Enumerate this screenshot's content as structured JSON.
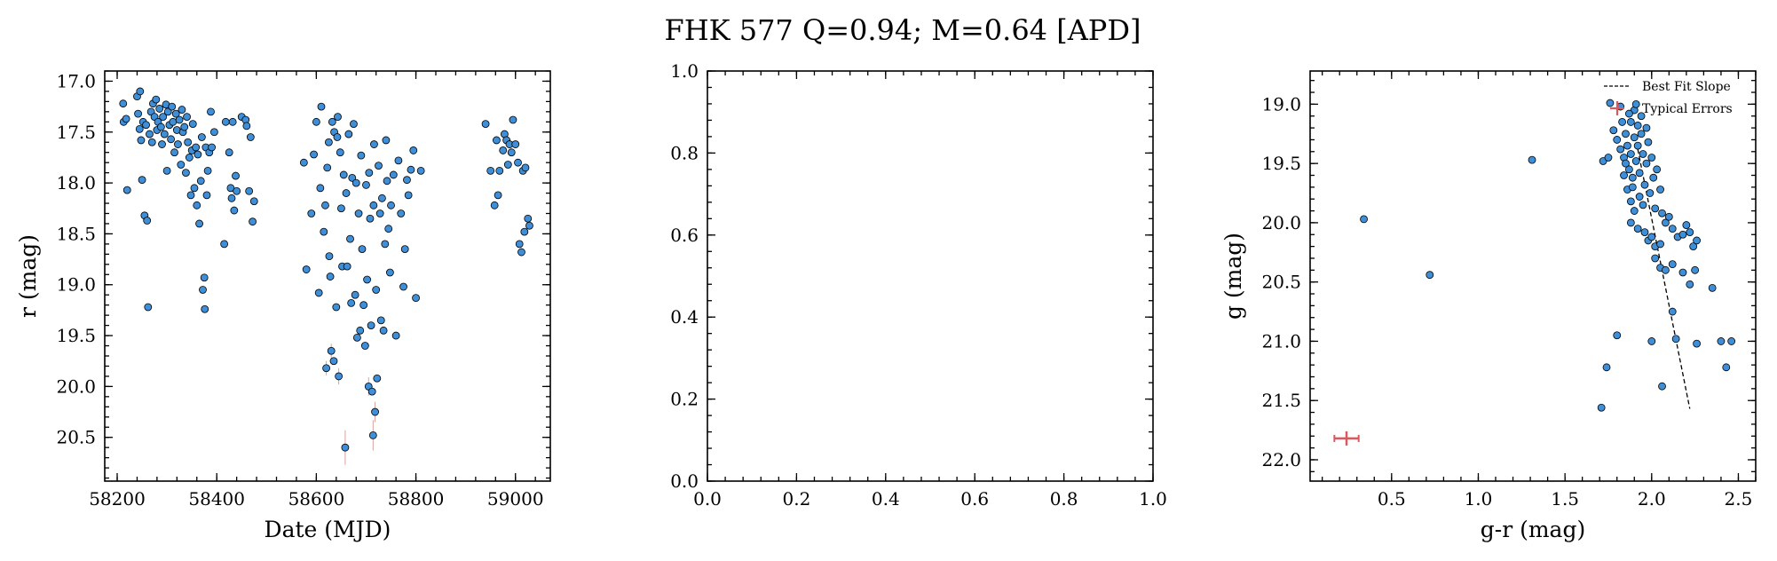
{
  "title": "FHK 577  Q=0.94; M=0.64 [APD]",
  "colors": {
    "marker_fill": "#3f8fd8",
    "marker_edge": "#000000",
    "err_bar": "#d9595f",
    "fit_line": "#000000"
  },
  "chart_data": [
    {
      "type": "scatter",
      "name": "light-curve",
      "xlabel": "Date (MJD)",
      "ylabel": "r (mag)",
      "xlim": [
        58175,
        59070
      ],
      "ylim": [
        20.93,
        16.9
      ],
      "y_inverted": true,
      "xticks": [
        58200,
        58400,
        58600,
        58800,
        59000
      ],
      "xtick_labels": [
        "58200",
        "58400",
        "58600",
        "58800",
        "59000"
      ],
      "yticks": [
        17.0,
        17.5,
        18.0,
        18.5,
        19.0,
        19.5,
        20.0,
        20.5
      ],
      "ytick_labels": [
        "17.0",
        "17.5",
        "18.0",
        "18.5",
        "19.0",
        "19.5",
        "20.0",
        "20.5"
      ],
      "points": [
        [
          58212,
          17.22
        ],
        [
          58213,
          17.4
        ],
        [
          58218,
          17.37
        ],
        [
          58220,
          18.07
        ],
        [
          58240,
          17.15
        ],
        [
          58242,
          17.32
        ],
        [
          58245,
          17.47
        ],
        [
          58246,
          17.1
        ],
        [
          58248,
          17.58
        ],
        [
          58250,
          17.97
        ],
        [
          58252,
          17.4
        ],
        [
          58255,
          18.32
        ],
        [
          58258,
          17.43
        ],
        [
          58260,
          18.37
        ],
        [
          58262,
          19.22
        ],
        [
          58265,
          17.52
        ],
        [
          58268,
          17.3
        ],
        [
          58270,
          17.6
        ],
        [
          58272,
          17.22
        ],
        [
          58275,
          17.35
        ],
        [
          58278,
          17.18
        ],
        [
          58280,
          17.48
        ],
        [
          58282,
          17.4
        ],
        [
          58285,
          17.27
        ],
        [
          58288,
          17.45
        ],
        [
          58290,
          17.62
        ],
        [
          58292,
          17.35
        ],
        [
          58295,
          17.52
        ],
        [
          58298,
          17.23
        ],
        [
          58300,
          17.88
        ],
        [
          58302,
          17.3
        ],
        [
          58305,
          17.43
        ],
        [
          58308,
          17.57
        ],
        [
          58310,
          17.25
        ],
        [
          58312,
          17.4
        ],
        [
          58315,
          17.7
        ],
        [
          58318,
          17.32
        ],
        [
          58320,
          17.48
        ],
        [
          58322,
          17.62
        ],
        [
          58325,
          17.38
        ],
        [
          58328,
          17.82
        ],
        [
          58330,
          17.28
        ],
        [
          58332,
          17.5
        ],
        [
          58335,
          17.45
        ],
        [
          58338,
          17.9
        ],
        [
          58340,
          17.35
        ],
        [
          58342,
          17.6
        ],
        [
          58345,
          17.75
        ],
        [
          58348,
          18.12
        ],
        [
          58350,
          17.68
        ],
        [
          58352,
          17.42
        ],
        [
          58355,
          18.05
        ],
        [
          58358,
          17.65
        ],
        [
          58360,
          18.22
        ],
        [
          58362,
          17.72
        ],
        [
          58365,
          18.4
        ],
        [
          58368,
          17.98
        ],
        [
          58370,
          17.55
        ],
        [
          58372,
          19.05
        ],
        [
          58375,
          18.93
        ],
        [
          58376,
          19.24
        ],
        [
          58378,
          17.65
        ],
        [
          58380,
          18.12
        ],
        [
          58382,
          17.88
        ],
        [
          58385,
          17.7
        ],
        [
          58388,
          17.3
        ],
        [
          58390,
          17.65
        ],
        [
          58395,
          17.5
        ],
        [
          58415,
          18.6
        ],
        [
          58418,
          17.4
        ],
        [
          58425,
          17.7
        ],
        [
          58428,
          18.05
        ],
        [
          58430,
          18.15
        ],
        [
          58432,
          17.4
        ],
        [
          58435,
          18.27
        ],
        [
          58438,
          17.93
        ],
        [
          58440,
          18.08
        ],
        [
          58450,
          17.35
        ],
        [
          58458,
          17.38
        ],
        [
          58460,
          17.44
        ],
        [
          58465,
          18.08
        ],
        [
          58468,
          17.55
        ],
        [
          58472,
          18.38
        ],
        [
          58475,
          18.18
        ],
        [
          58575,
          17.8
        ],
        [
          58580,
          18.85
        ],
        [
          58590,
          18.3
        ],
        [
          58595,
          17.72
        ],
        [
          58600,
          17.4
        ],
        [
          58605,
          19.08
        ],
        [
          58608,
          18.05
        ],
        [
          58610,
          17.25
        ],
        [
          58615,
          18.48
        ],
        [
          58618,
          18.22
        ],
        [
          58620,
          19.82
        ],
        [
          58622,
          17.85
        ],
        [
          58625,
          17.6
        ],
        [
          58626,
          18.72
        ],
        [
          58628,
          18.92
        ],
        [
          58630,
          19.65
        ],
        [
          58632,
          17.4
        ],
        [
          58635,
          19.75
        ],
        [
          58636,
          17.5
        ],
        [
          58640,
          19.22
        ],
        [
          58642,
          17.55
        ],
        [
          58643,
          17.35
        ],
        [
          58645,
          19.9
        ],
        [
          58648,
          17.7
        ],
        [
          58650,
          18.25
        ],
        [
          58652,
          18.82
        ],
        [
          58655,
          17.92
        ],
        [
          58658,
          20.6
        ],
        [
          58660,
          18.1
        ],
        [
          58662,
          18.82
        ],
        [
          58665,
          17.52
        ],
        [
          58668,
          18.55
        ],
        [
          58670,
          19.18
        ],
        [
          58672,
          17.95
        ],
        [
          58675,
          17.42
        ],
        [
          58678,
          19.1
        ],
        [
          58680,
          18.0
        ],
        [
          58682,
          19.52
        ],
        [
          58685,
          18.3
        ],
        [
          58688,
          19.45
        ],
        [
          58690,
          17.73
        ],
        [
          58692,
          18.65
        ],
        [
          58695,
          19.2
        ],
        [
          58698,
          19.6
        ],
        [
          58700,
          18.02
        ],
        [
          58702,
          18.95
        ],
        [
          58705,
          20.0
        ],
        [
          58706,
          17.9
        ],
        [
          58708,
          18.35
        ],
        [
          58710,
          19.4
        ],
        [
          58712,
          20.05
        ],
        [
          58714,
          20.48
        ],
        [
          58715,
          18.22
        ],
        [
          58716,
          17.62
        ],
        [
          58718,
          20.25
        ],
        [
          58720,
          19.05
        ],
        [
          58722,
          19.92
        ],
        [
          58725,
          17.83
        ],
        [
          58728,
          18.3
        ],
        [
          58730,
          19.35
        ],
        [
          58732,
          18.15
        ],
        [
          58735,
          19.45
        ],
        [
          58738,
          18.6
        ],
        [
          58740,
          17.58
        ],
        [
          58742,
          17.98
        ],
        [
          58745,
          18.45
        ],
        [
          58748,
          18.88
        ],
        [
          58750,
          18.22
        ],
        [
          58755,
          17.92
        ],
        [
          58760,
          19.5
        ],
        [
          58765,
          17.78
        ],
        [
          58770,
          18.3
        ],
        [
          58775,
          19.02
        ],
        [
          58778,
          18.65
        ],
        [
          58782,
          17.97
        ],
        [
          58785,
          18.12
        ],
        [
          58790,
          17.87
        ],
        [
          58795,
          17.68
        ],
        [
          58800,
          19.13
        ],
        [
          58810,
          17.88
        ],
        [
          58940,
          17.42
        ],
        [
          58950,
          17.88
        ],
        [
          58958,
          18.22
        ],
        [
          58962,
          17.58
        ],
        [
          58965,
          18.12
        ],
        [
          58968,
          17.88
        ],
        [
          58975,
          17.68
        ],
        [
          58978,
          17.52
        ],
        [
          58982,
          17.58
        ],
        [
          58985,
          17.82
        ],
        [
          58988,
          17.62
        ],
        [
          58992,
          17.7
        ],
        [
          58995,
          17.38
        ],
        [
          59000,
          17.62
        ],
        [
          59005,
          17.8
        ],
        [
          59008,
          18.6
        ],
        [
          59012,
          18.68
        ],
        [
          59015,
          17.88
        ],
        [
          59018,
          18.48
        ],
        [
          59020,
          17.85
        ],
        [
          59025,
          18.35
        ],
        [
          59028,
          18.42
        ]
      ],
      "error_bars": [
        [
          58658,
          20.6,
          0.17
        ],
        [
          58714,
          20.48,
          0.15
        ],
        [
          58705,
          20.0,
          0.09
        ],
        [
          58718,
          20.25,
          0.1
        ],
        [
          58645,
          19.9,
          0.08
        ],
        [
          58620,
          19.82,
          0.07
        ],
        [
          58630,
          19.65,
          0.07
        ]
      ]
    },
    {
      "type": "scatter",
      "name": "empty-panel",
      "xlim": [
        0,
        1
      ],
      "ylim": [
        0,
        1
      ],
      "y_inverted": false,
      "xticks": [
        0,
        0.2,
        0.4,
        0.6,
        0.8,
        1.0
      ],
      "xtick_labels": [
        "0.0",
        "0.2",
        "0.4",
        "0.6",
        "0.8",
        "1.0"
      ],
      "yticks": [
        0,
        0.2,
        0.4,
        0.6,
        0.8,
        1.0
      ],
      "ytick_labels": [
        "0.0",
        "0.2",
        "0.4",
        "0.6",
        "0.8",
        "1.0"
      ],
      "points": []
    },
    {
      "type": "scatter",
      "name": "color-magnitude",
      "xlabel": "g-r (mag)",
      "ylabel": "g (mag)",
      "xlim": [
        0.03,
        2.6
      ],
      "ylim": [
        22.18,
        18.72
      ],
      "y_inverted": true,
      "xticks": [
        0.5,
        1.0,
        1.5,
        2.0,
        2.5
      ],
      "xtick_labels": [
        "0.5",
        "1.0",
        "1.5",
        "2.0",
        "2.5"
      ],
      "yticks": [
        19.0,
        19.5,
        20.0,
        20.5,
        21.0,
        21.5,
        22.0
      ],
      "ytick_labels": [
        "19.0",
        "19.5",
        "20.0",
        "20.5",
        "21.0",
        "21.5",
        "22.0"
      ],
      "legend": {
        "location": "top-right",
        "entries": [
          "Best Fit Slope",
          "Typical Errors"
        ]
      },
      "fit_line": [
        [
          1.92,
          19.38
        ],
        [
          2.22,
          21.57
        ]
      ],
      "typical_error": {
        "x": 0.24,
        "y": 21.82,
        "xerr": 0.07,
        "yerr": 0.06
      },
      "points": [
        [
          0.34,
          19.97
        ],
        [
          0.72,
          20.44
        ],
        [
          1.31,
          19.47
        ],
        [
          1.71,
          21.56
        ],
        [
          1.74,
          21.22
        ],
        [
          1.72,
          19.48
        ],
        [
          1.8,
          20.95
        ],
        [
          1.76,
          18.99
        ],
        [
          1.82,
          19.02
        ],
        [
          1.78,
          19.22
        ],
        [
          1.8,
          19.3
        ],
        [
          1.82,
          19.38
        ],
        [
          1.84,
          19.45
        ],
        [
          1.85,
          19.25
        ],
        [
          1.86,
          19.35
        ],
        [
          1.87,
          19.55
        ],
        [
          1.88,
          19.15
        ],
        [
          1.88,
          19.42
        ],
        [
          1.89,
          19.62
        ],
        [
          1.9,
          19.05
        ],
        [
          1.9,
          19.28
        ],
        [
          1.91,
          19.48
        ],
        [
          1.92,
          19.18
        ],
        [
          1.92,
          19.35
        ],
        [
          1.93,
          19.58
        ],
        [
          1.94,
          19.1
        ],
        [
          1.94,
          19.25
        ],
        [
          1.95,
          19.42
        ],
        [
          1.96,
          19.68
        ],
        [
          1.97,
          19.2
        ],
        [
          1.97,
          19.5
        ],
        [
          1.98,
          19.32
        ],
        [
          1.99,
          19.75
        ],
        [
          2.0,
          19.45
        ],
        [
          2.01,
          19.62
        ],
        [
          2.02,
          19.88
        ],
        [
          2.03,
          19.55
        ],
        [
          2.05,
          19.72
        ],
        [
          2.06,
          19.92
        ],
        [
          1.84,
          19.6
        ],
        [
          1.86,
          19.72
        ],
        [
          1.88,
          19.82
        ],
        [
          1.9,
          19.9
        ],
        [
          1.83,
          19.15
        ],
        [
          1.87,
          19.08
        ],
        [
          1.91,
          19.0
        ],
        [
          1.89,
          19.7
        ],
        [
          1.93,
          19.78
        ],
        [
          1.95,
          19.85
        ],
        [
          1.85,
          19.5
        ],
        [
          1.88,
          20.0
        ],
        [
          1.92,
          20.05
        ],
        [
          1.96,
          20.08
        ],
        [
          1.98,
          20.15
        ],
        [
          2.0,
          20.12
        ],
        [
          2.02,
          20.2
        ],
        [
          2.05,
          20.18
        ],
        [
          2.08,
          20.0
        ],
        [
          2.1,
          19.95
        ],
        [
          2.12,
          20.05
        ],
        [
          2.15,
          20.12
        ],
        [
          2.18,
          20.1
        ],
        [
          2.2,
          20.02
        ],
        [
          2.22,
          20.08
        ],
        [
          2.24,
          20.2
        ],
        [
          2.26,
          20.15
        ],
        [
          2.02,
          20.3
        ],
        [
          2.05,
          20.38
        ],
        [
          2.08,
          20.4
        ],
        [
          2.12,
          20.35
        ],
        [
          2.18,
          20.42
        ],
        [
          2.22,
          20.52
        ],
        [
          2.25,
          20.4
        ],
        [
          2.35,
          20.55
        ],
        [
          2.12,
          20.75
        ],
        [
          2.0,
          21.0
        ],
        [
          2.14,
          20.98
        ],
        [
          2.26,
          21.02
        ],
        [
          2.4,
          21.0
        ],
        [
          2.46,
          21.0
        ],
        [
          2.43,
          21.22
        ],
        [
          2.06,
          21.38
        ],
        [
          1.75,
          19.45
        ]
      ]
    }
  ]
}
